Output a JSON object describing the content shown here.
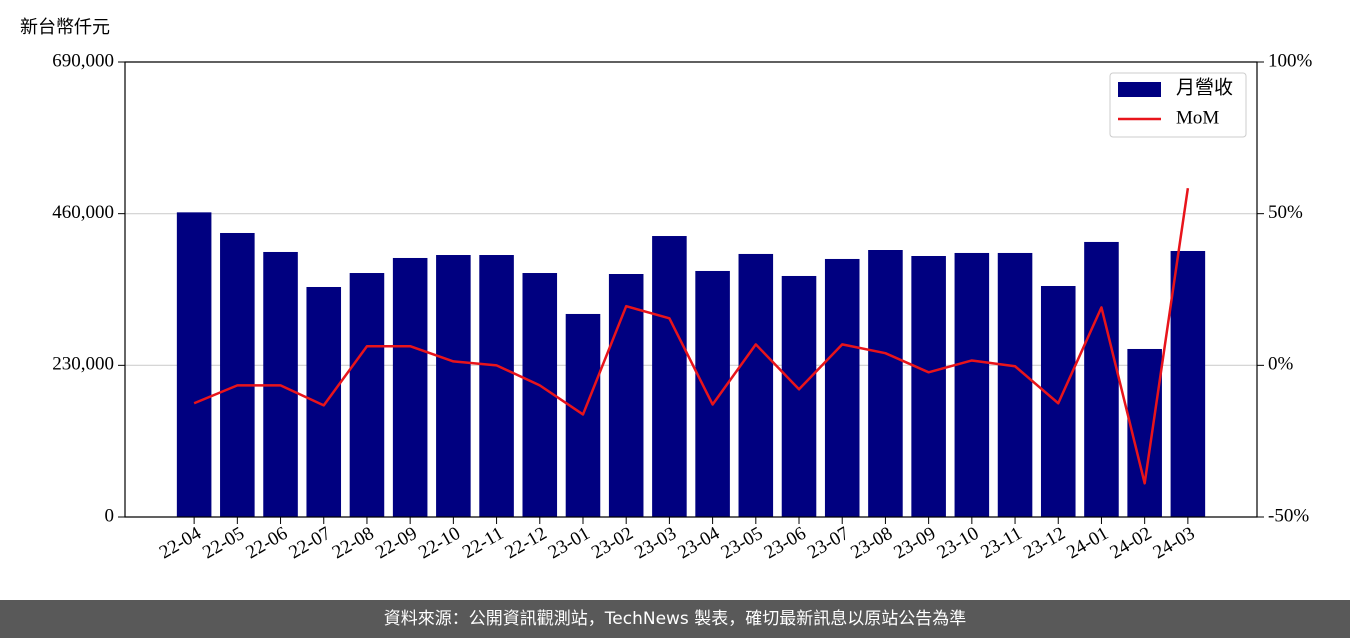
{
  "chart_data": {
    "type": "bar_line",
    "ylabel": "新台幣仟元",
    "categories": [
      "22-04",
      "22-05",
      "22-06",
      "22-07",
      "22-08",
      "22-09",
      "22-10",
      "22-11",
      "22-12",
      "23-01",
      "23-02",
      "23-03",
      "23-04",
      "23-05",
      "23-06",
      "23-07",
      "23-08",
      "23-09",
      "23-10",
      "23-11",
      "23-12",
      "24-01",
      "24-02",
      "24-03"
    ],
    "series": [
      {
        "name": "月營收",
        "type": "bar",
        "color": "#000080",
        "values": [
          462000,
          430700,
          401900,
          348800,
          370000,
          392800,
          397300,
          397300,
          370000,
          307900,
          368500,
          426100,
          373100,
          398900,
          365500,
          391300,
          404900,
          395800,
          400400,
          400400,
          350300,
          417100,
          254800,
          403400
        ]
      },
      {
        "name": "MoM",
        "type": "line",
        "color": "#e8141b",
        "axis": "y2",
        "values": [
          -12.5,
          -6.6,
          -6.6,
          -13.2,
          6.3,
          6.3,
          1.3,
          0,
          -6.6,
          -16.2,
          19.5,
          15.5,
          -12.9,
          6.9,
          -7.9,
          6.9,
          4.0,
          -2.3,
          1.6,
          -0.3,
          -12.5,
          19.1,
          -38.9,
          58.4
        ]
      }
    ],
    "ylim": [
      0,
      690000
    ],
    "yticks": [
      0,
      {
        "value": 230000,
        "label": "230,000"
      },
      {
        "value": 460000,
        "label": "460,000"
      },
      {
        "value": 690000,
        "label": "690,000"
      }
    ],
    "y2lim": [
      -50,
      100
    ],
    "y2ticks": [
      {
        "value": -50,
        "label": "-50%"
      },
      {
        "value": 0,
        "label": "0%"
      },
      {
        "value": 50,
        "label": "50%"
      },
      {
        "value": 100,
        "label": "100%"
      }
    ],
    "grid": true,
    "legend": "upper right"
  },
  "footer": "資料來源：公開資訊觀測站，TechNews 製表，確切最新訊息以原站公告為準"
}
